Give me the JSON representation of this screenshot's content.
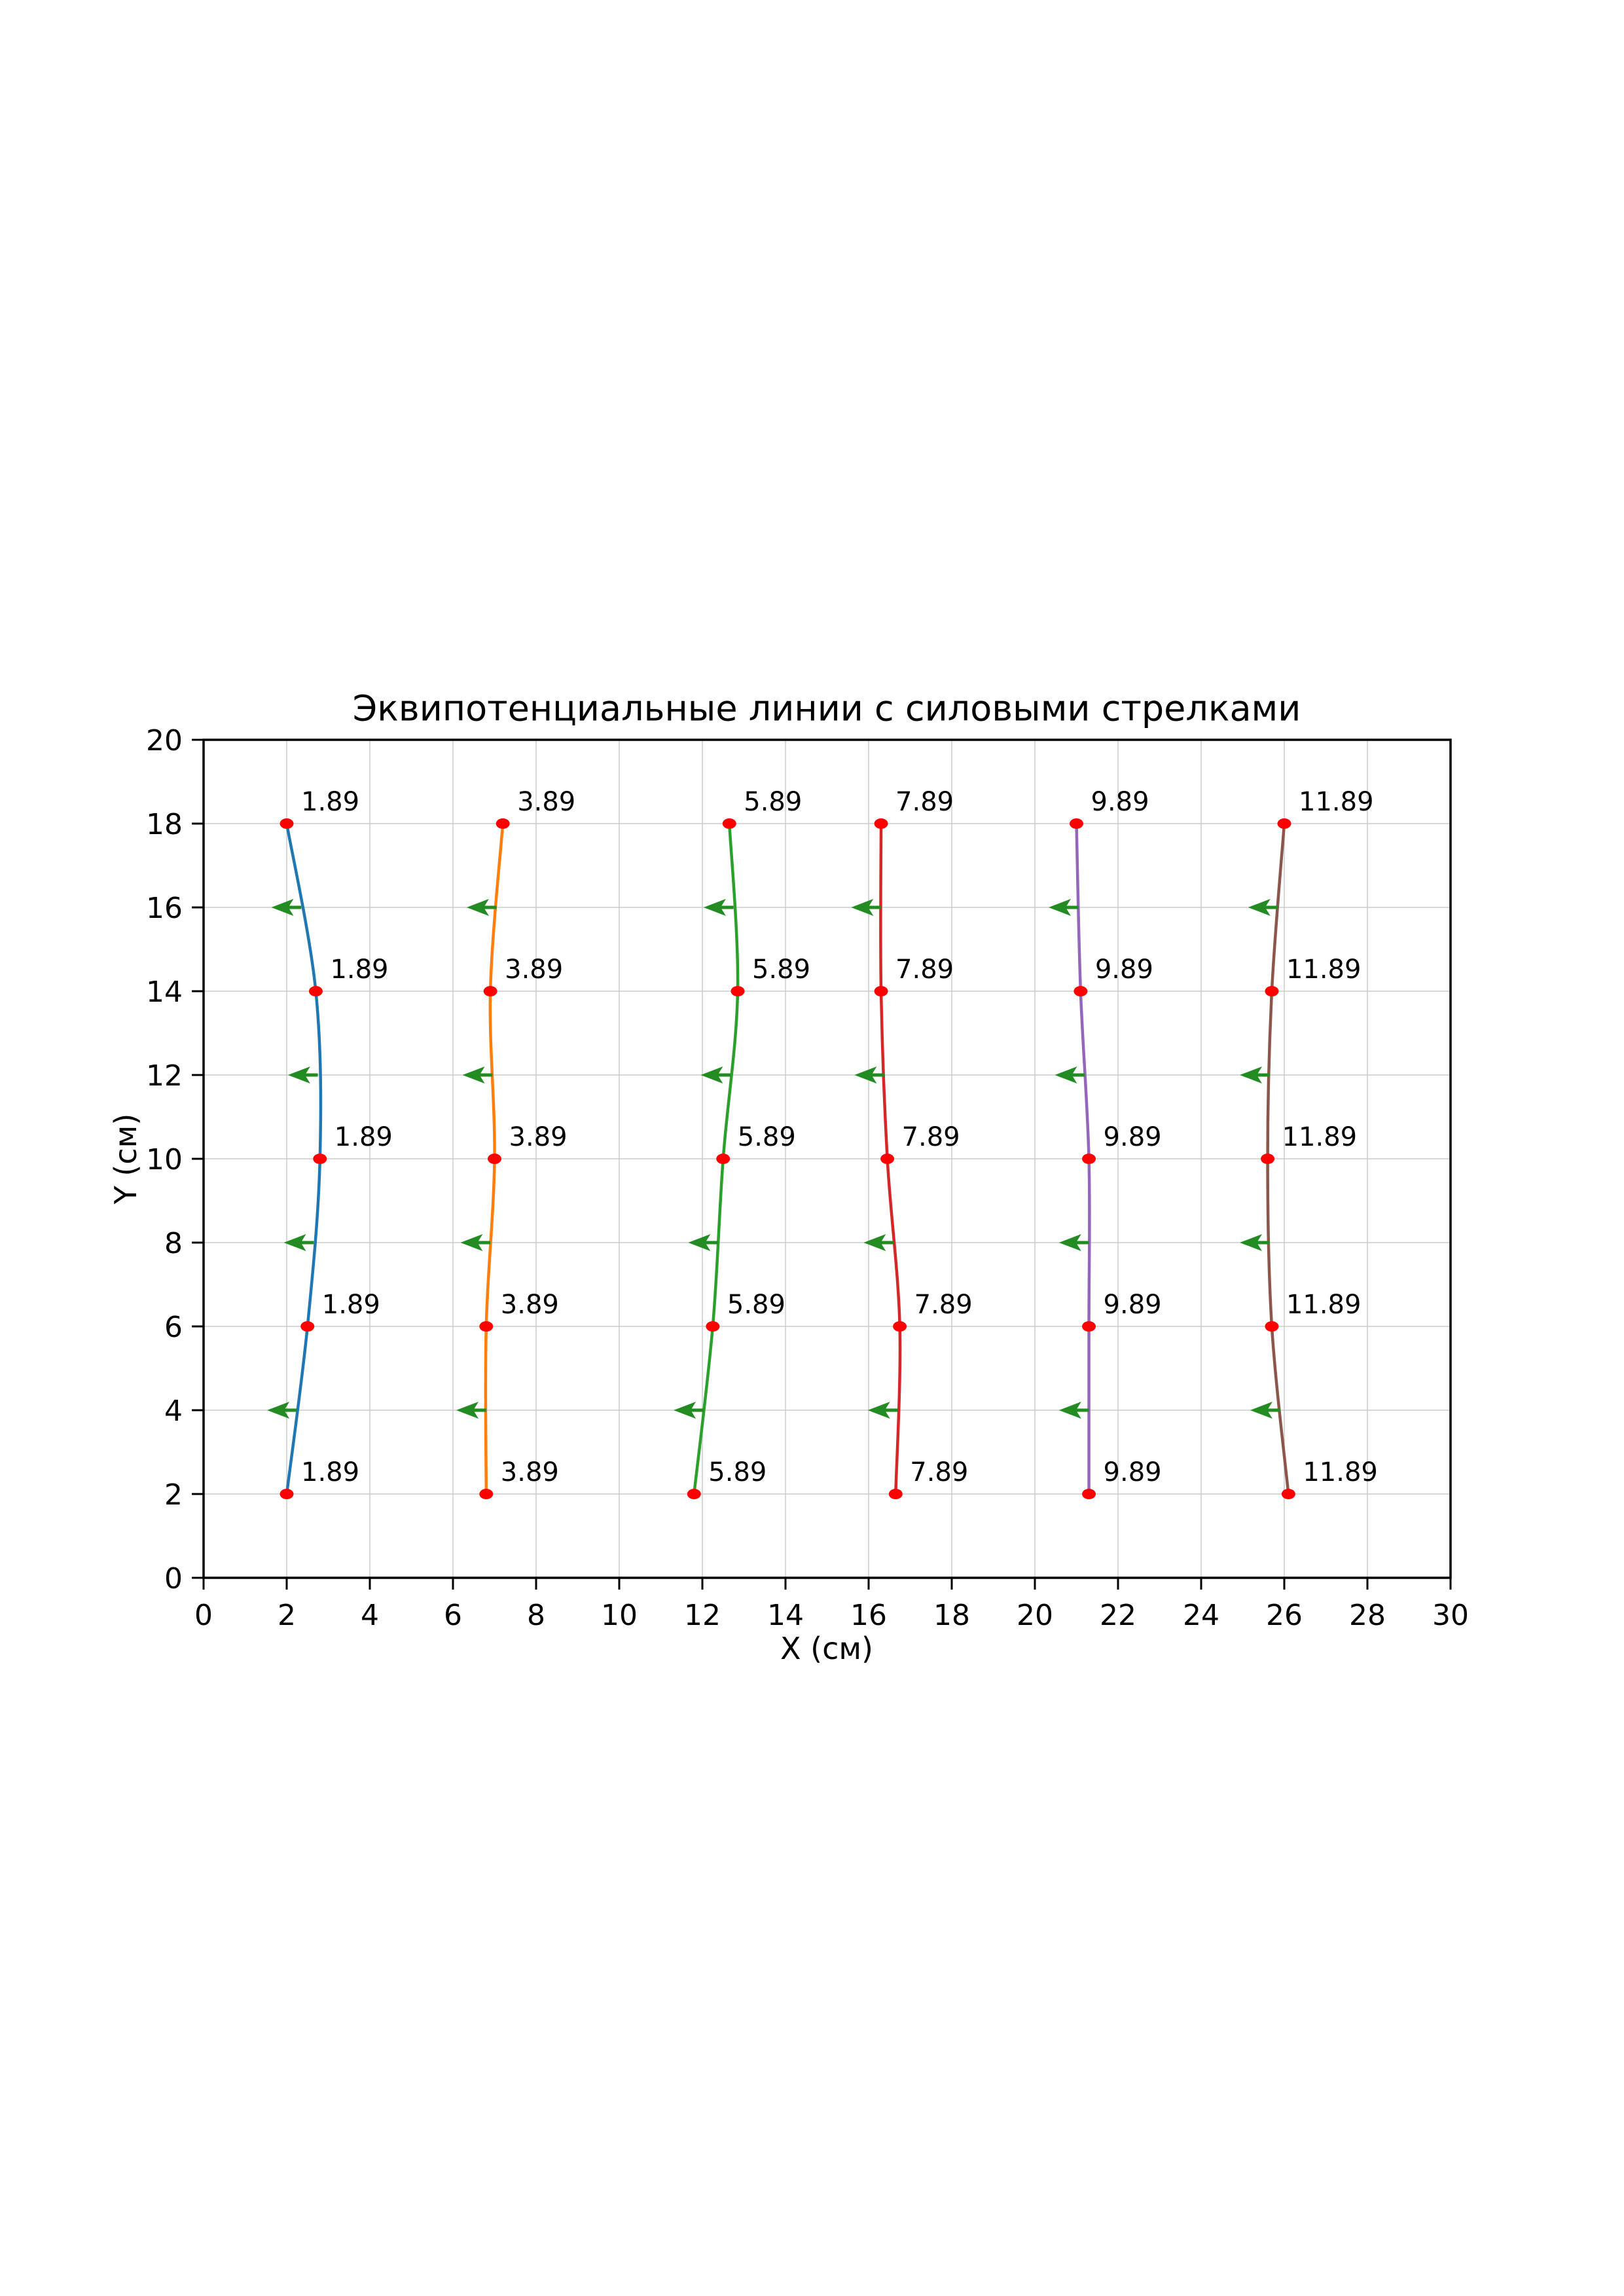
{
  "figure": {
    "title": "Эквипотенциальные линии с силовыми стрелками",
    "xlabel": "X (см)",
    "ylabel": "Y (см)"
  },
  "chart_data": {
    "type": "line",
    "title": "Эквипотенциальные линии с силовыми стрелками",
    "xlabel": "X (см)",
    "ylabel": "Y (см)",
    "xlim": [
      0,
      30
    ],
    "ylim": [
      0,
      20
    ],
    "xticks": [
      0,
      2,
      4,
      6,
      8,
      10,
      12,
      14,
      16,
      18,
      20,
      22,
      24,
      26,
      28,
      30
    ],
    "yticks": [
      0,
      2,
      4,
      6,
      8,
      10,
      12,
      14,
      16,
      18,
      20
    ],
    "grid": true,
    "legend_position": "none",
    "styles": {
      "curve_colors": [
        "#1f77b4",
        "#ff7f0e",
        "#2ca02c",
        "#d62728",
        "#9467bd",
        "#8c564b"
      ],
      "marker_color": "#ff0000",
      "arrow_color": "#228b22",
      "grid_color": "#cccccc",
      "spine_color": "#000000",
      "text_color": "#000000"
    },
    "point_y": [
      2,
      6,
      10,
      14,
      18
    ],
    "arrow_y": [
      4,
      8,
      12,
      16
    ],
    "arrow_dx": -0.72,
    "series": [
      {
        "label": "1.89",
        "color_index": 0,
        "x": [
          2.0,
          2.5,
          2.8,
          2.7,
          2.0
        ],
        "arrow_tail_x": [
          2.25,
          2.65,
          2.75,
          2.35
        ]
      },
      {
        "label": "3.89",
        "color_index": 1,
        "x": [
          6.8,
          6.8,
          7.0,
          6.9,
          7.2
        ],
        "arrow_tail_x": [
          6.8,
          6.9,
          6.95,
          7.05
        ]
      },
      {
        "label": "5.89",
        "color_index": 2,
        "x": [
          11.8,
          12.25,
          12.5,
          12.85,
          12.65
        ],
        "arrow_tail_x": [
          12.03,
          12.38,
          12.68,
          12.75
        ]
      },
      {
        "label": "7.89",
        "color_index": 3,
        "x": [
          16.65,
          16.75,
          16.45,
          16.3,
          16.3
        ],
        "arrow_tail_x": [
          16.7,
          16.6,
          16.38,
          16.3
        ]
      },
      {
        "label": "9.89",
        "color_index": 4,
        "x": [
          21.3,
          21.3,
          21.3,
          21.1,
          21.0
        ],
        "arrow_tail_x": [
          21.3,
          21.3,
          21.2,
          21.05
        ]
      },
      {
        "label": "11.89",
        "color_index": 5,
        "x": [
          26.1,
          25.7,
          25.6,
          25.7,
          26.0
        ],
        "arrow_tail_x": [
          25.9,
          25.65,
          25.65,
          25.85
        ]
      }
    ]
  }
}
